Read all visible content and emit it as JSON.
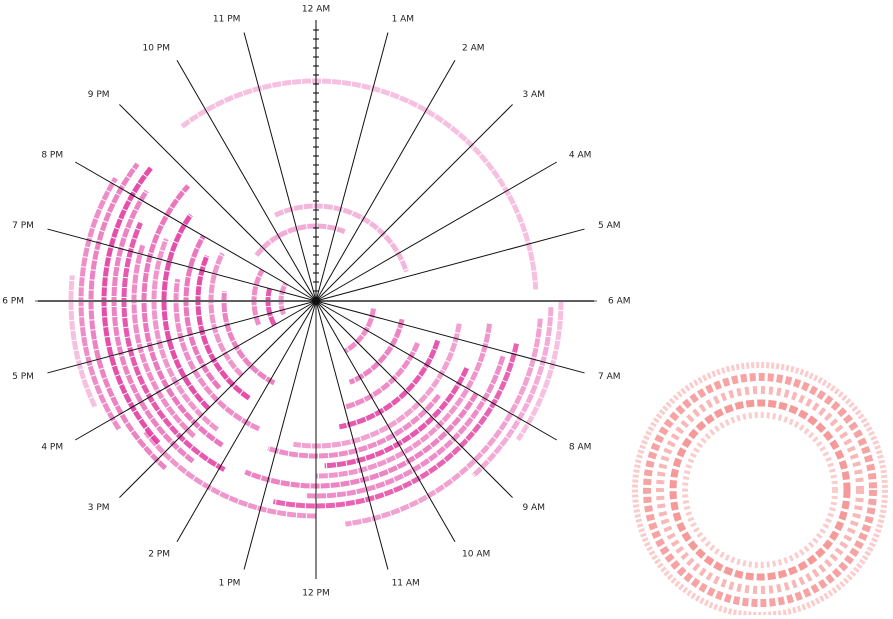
{
  "clock": {
    "labels": [
      "12 AM",
      "1 AM",
      "2 AM",
      "3 AM",
      "4 AM",
      "5 AM",
      "6 AM",
      "7 AM",
      "8 AM",
      "9 AM",
      "10 AM",
      "11 AM",
      "12 PM",
      "1 PM",
      "2 PM",
      "3 PM",
      "4 PM",
      "5 PM",
      "6 PM",
      "7 PM",
      "8 PM",
      "9 PM",
      "10 PM",
      "11 PM"
    ],
    "color": "#e0309a",
    "arcs": [
      {
        "start": 21.5,
        "end": 5.8,
        "ring": 220,
        "shade": 0.3
      },
      {
        "start": 22.3,
        "end": 4.8,
        "ring": 95,
        "shade": 0.35
      },
      {
        "start": 20.5,
        "end": 1.5,
        "ring": 75,
        "shade": 0.4
      },
      {
        "start": 16.3,
        "end": 18.4,
        "ring": 245,
        "shade": 0.3
      },
      {
        "start": 15.8,
        "end": 20.1,
        "ring": 235,
        "shade": 0.55
      },
      {
        "start": 14.8,
        "end": 20.5,
        "ring": 225,
        "shade": 0.6
      },
      {
        "start": 15.2,
        "end": 20.6,
        "ring": 212,
        "shade": 0.85
      },
      {
        "start": 14.5,
        "end": 20.2,
        "ring": 202,
        "shade": 0.6
      },
      {
        "start": 13.9,
        "end": 19.6,
        "ring": 192,
        "shade": 0.8
      },
      {
        "start": 14.8,
        "end": 19.2,
        "ring": 182,
        "shade": 0.55
      },
      {
        "start": 14.2,
        "end": 20.8,
        "ring": 172,
        "shade": 0.65
      },
      {
        "start": 14.5,
        "end": 19.5,
        "ring": 162,
        "shade": 0.5
      },
      {
        "start": 15.0,
        "end": 20.3,
        "ring": 152,
        "shade": 0.85
      },
      {
        "start": 13.6,
        "end": 18.6,
        "ring": 140,
        "shade": 0.55
      },
      {
        "start": 15.2,
        "end": 20.0,
        "ring": 130,
        "shade": 0.65
      },
      {
        "start": 14.3,
        "end": 19.5,
        "ring": 118,
        "shade": 0.85
      },
      {
        "start": 15.0,
        "end": 19.8,
        "ring": 105,
        "shade": 0.5
      },
      {
        "start": 13.8,
        "end": 18.4,
        "ring": 92,
        "shade": 0.6
      },
      {
        "start": 16.5,
        "end": 20.0,
        "ring": 62,
        "shade": 0.55
      },
      {
        "start": 16.0,
        "end": 19.0,
        "ring": 48,
        "shade": 0.8
      },
      {
        "start": 16.5,
        "end": 20.0,
        "ring": 35,
        "shade": 0.5
      },
      {
        "start": 6.0,
        "end": 8.3,
        "ring": 245,
        "shade": 0.3
      },
      {
        "start": 6.1,
        "end": 9.2,
        "ring": 235,
        "shade": 0.4
      },
      {
        "start": 6.3,
        "end": 11.5,
        "ring": 225,
        "shade": 0.45
      },
      {
        "start": 12.0,
        "end": 15.5,
        "ring": 215,
        "shade": 0.5
      },
      {
        "start": 6.8,
        "end": 12.8,
        "ring": 205,
        "shade": 0.75
      },
      {
        "start": 7.1,
        "end": 12.2,
        "ring": 195,
        "shade": 0.55
      },
      {
        "start": 8.0,
        "end": 13.5,
        "ring": 185,
        "shade": 0.6
      },
      {
        "start": 6.5,
        "end": 12.0,
        "ring": 175,
        "shade": 0.5
      },
      {
        "start": 7.6,
        "end": 11.8,
        "ring": 165,
        "shade": 0.8
      },
      {
        "start": 8.5,
        "end": 13.2,
        "ring": 155,
        "shade": 0.55
      },
      {
        "start": 6.6,
        "end": 12.6,
        "ring": 145,
        "shade": 0.45
      },
      {
        "start": 7.2,
        "end": 11.3,
        "ring": 128,
        "shade": 0.8
      },
      {
        "start": 7.5,
        "end": 11.0,
        "ring": 110,
        "shade": 0.55
      },
      {
        "start": 6.8,
        "end": 10.5,
        "ring": 88,
        "shade": 0.6
      },
      {
        "start": 6.5,
        "end": 10.0,
        "ring": 58,
        "shade": 0.55
      }
    ]
  }
}
